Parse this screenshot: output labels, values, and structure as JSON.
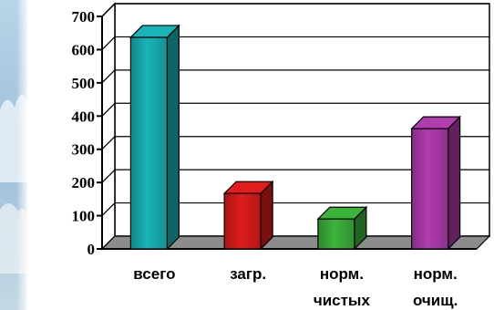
{
  "chart_data": {
    "type": "bar",
    "categories": [
      [
        "всего"
      ],
      [
        "загр."
      ],
      [
        "норм.",
        "чистых"
      ],
      [
        "норм.",
        "очищ."
      ]
    ],
    "values": [
      637,
      167,
      90,
      362
    ],
    "bar_colors": [
      "#18b4b8",
      "#e01c1c",
      "#3cb43c",
      "#b03cb0"
    ],
    "ylim": [
      0,
      700
    ],
    "yticks": [
      0,
      100,
      200,
      300,
      400,
      500,
      600,
      700
    ],
    "title": "",
    "xlabel": "",
    "ylabel": "",
    "grid": true,
    "legend": false
  }
}
